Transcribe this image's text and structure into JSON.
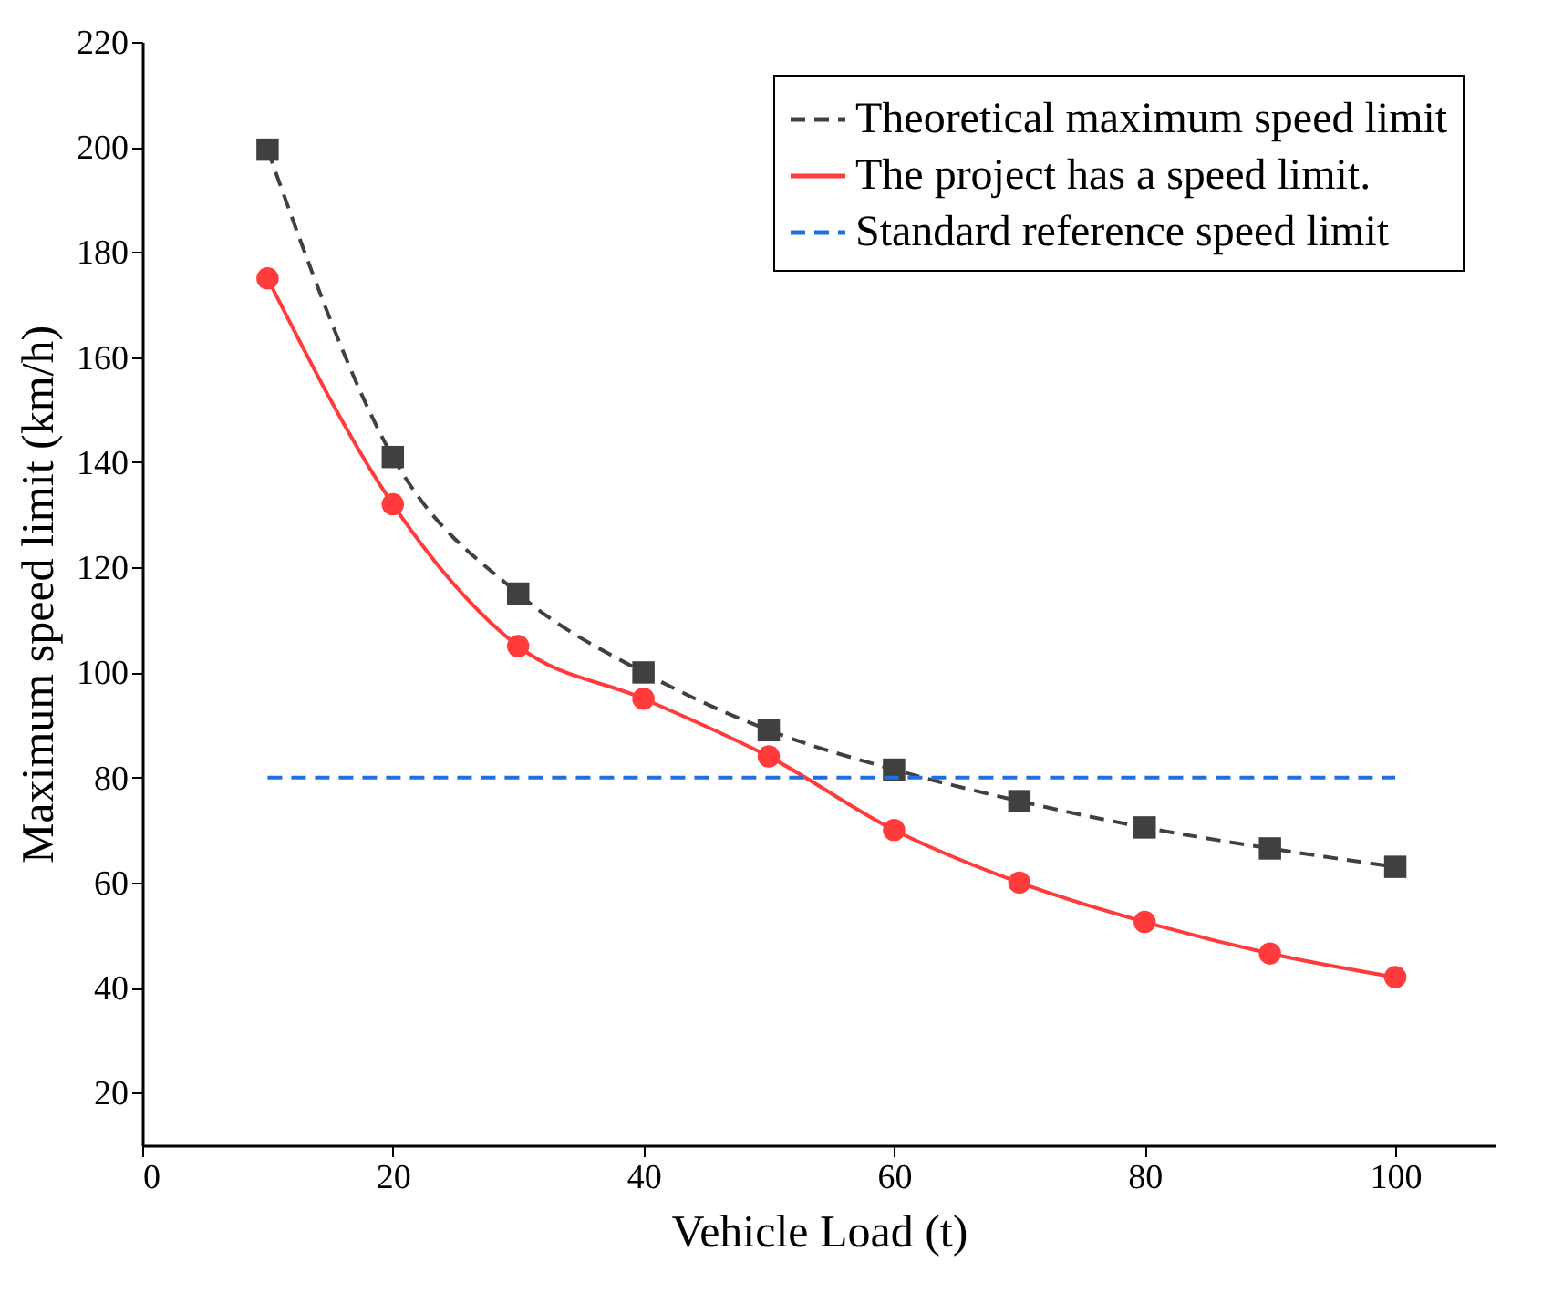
{
  "chart_data": {
    "type": "line",
    "xlabel": "Vehicle Load (t)",
    "ylabel": "Maximum speed limit (km/h)",
    "x": [
      10,
      20,
      30,
      40,
      50,
      60,
      70,
      80,
      90,
      100
    ],
    "xlim": [
      0,
      108
    ],
    "xticks": [
      0,
      20,
      40,
      60,
      80,
      100
    ],
    "ylim": [
      10,
      220
    ],
    "yticks": [
      20,
      40,
      60,
      80,
      100,
      120,
      140,
      160,
      180,
      200,
      220
    ],
    "grid": false,
    "legend": "top right",
    "series": [
      {
        "name": "Theoretical maximum speed limit",
        "color": "#404040",
        "marker": "square",
        "line_style": "dashed",
        "values": [
          199.5,
          141,
          115,
          100,
          89,
          81.5,
          75.5,
          70.5,
          66.5,
          63
        ]
      },
      {
        "name": "The project has a speed limit.",
        "color": "#ff3b3b",
        "marker": "circle",
        "line_style": "solid",
        "values": [
          175,
          132,
          105,
          95,
          84,
          70,
          60,
          52.5,
          46.5,
          42
        ]
      },
      {
        "name": "Standard reference speed limit",
        "color": "#1f6fe0",
        "marker": "none",
        "line_style": "dashed",
        "x": [
          10,
          100
        ],
        "values": [
          80,
          80
        ]
      }
    ]
  }
}
